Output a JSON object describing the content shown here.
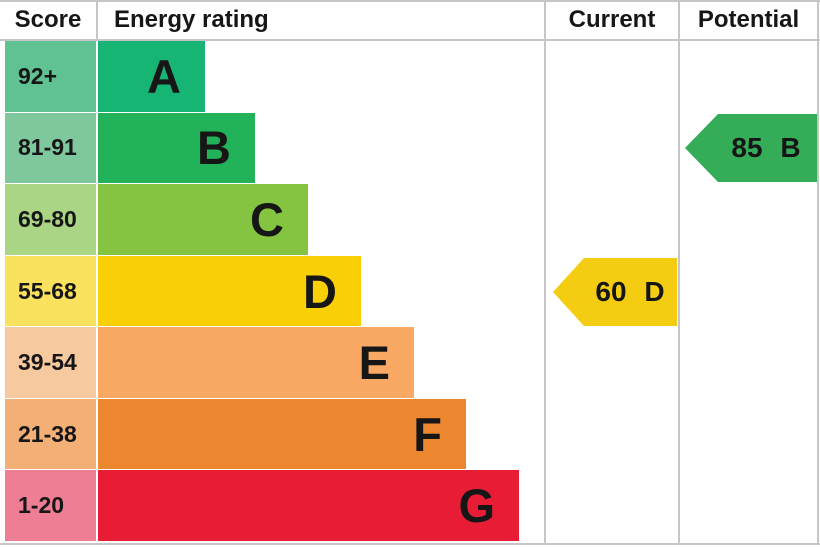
{
  "header": {
    "score": "Score",
    "energy_rating": "Energy rating",
    "current": "Current",
    "potential": "Potential"
  },
  "bands": [
    {
      "letter": "A",
      "score": "92+",
      "bar_color": "#17b573",
      "score_color": "#60c193"
    },
    {
      "letter": "B",
      "score": "81-91",
      "bar_color": "#22b25a",
      "score_color": "#7fc89e"
    },
    {
      "letter": "C",
      "score": "69-80",
      "bar_color": "#85c441",
      "score_color": "#aad584"
    },
    {
      "letter": "D",
      "score": "55-68",
      "bar_color": "#f9d006",
      "score_color": "#fae25f"
    },
    {
      "letter": "E",
      "score": "39-54",
      "bar_color": "#f9a963",
      "score_color": "#f7c99e"
    },
    {
      "letter": "F",
      "score": "21-38",
      "bar_color": "#ec862f",
      "score_color": "#f2b077"
    },
    {
      "letter": "G",
      "score": "1-20",
      "bar_color": "#e81d35",
      "score_color": "#ee7e93"
    }
  ],
  "current": {
    "label": "60 D",
    "value": "60",
    "band": "D",
    "color": "#f4cc12"
  },
  "potential": {
    "label": "85 B",
    "value": "85",
    "band": "B",
    "color": "#35ac58"
  },
  "line_color": "#c6c6c6",
  "chart_data": {
    "type": "bar",
    "title": "Energy rating",
    "categories": [
      "A",
      "B",
      "C",
      "D",
      "E",
      "F",
      "G"
    ],
    "score_ranges": [
      "92+",
      "81-91",
      "69-80",
      "55-68",
      "39-54",
      "21-38",
      "1-20"
    ],
    "band_colors": [
      "#17b573",
      "#22b25a",
      "#85c441",
      "#f9d006",
      "#f9a963",
      "#ec862f",
      "#e81d35"
    ],
    "columns": [
      "Score",
      "Energy rating",
      "Current",
      "Potential"
    ],
    "current": {
      "score": 60,
      "band": "D"
    },
    "potential": {
      "score": 85,
      "band": "B"
    },
    "legend_position": "none",
    "grid": false
  }
}
